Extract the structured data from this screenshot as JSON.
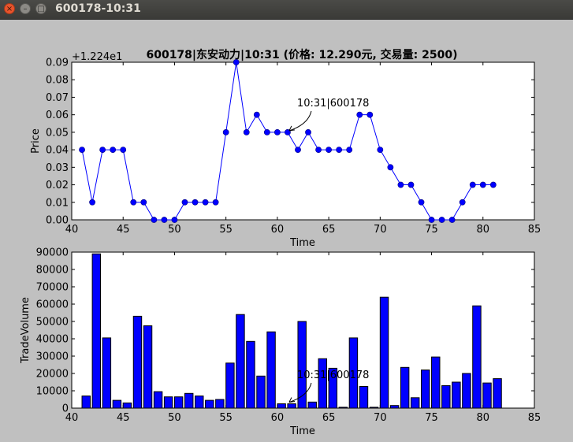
{
  "window": {
    "title": "600178-10:31"
  },
  "chart_data": [
    {
      "type": "line",
      "title": "600178|东安动力|10:31 (价格: 12.290元, 交易量: 2500)",
      "xlabel": "Time",
      "ylabel": "Price",
      "offset_label": "+1.224e1",
      "xlim": [
        40,
        85
      ],
      "ylim": [
        0.0,
        0.09
      ],
      "xticks": [
        "40",
        "45",
        "50",
        "55",
        "60",
        "65",
        "70",
        "75",
        "80",
        "85"
      ],
      "yticks": [
        "0.00",
        "0.01",
        "0.02",
        "0.03",
        "0.04",
        "0.05",
        "0.06",
        "0.07",
        "0.08",
        "0.09"
      ],
      "x": [
        41,
        42,
        43,
        44,
        45,
        46,
        47,
        48,
        49,
        50,
        51,
        52,
        53,
        54,
        55,
        56,
        57,
        58,
        59,
        60,
        61,
        62,
        63,
        64,
        65,
        66,
        67,
        68,
        69,
        70,
        71,
        72,
        73,
        74,
        75,
        76,
        77,
        78,
        79,
        80,
        81
      ],
      "values": [
        0.04,
        0.01,
        0.04,
        0.04,
        0.04,
        0.01,
        0.01,
        0.0,
        0.0,
        0.0,
        0.01,
        0.01,
        0.01,
        0.01,
        0.05,
        0.09,
        0.05,
        0.06,
        0.05,
        0.05,
        0.05,
        0.04,
        0.05,
        0.04,
        0.04,
        0.04,
        0.04,
        0.06,
        0.06,
        0.04,
        0.03,
        0.02,
        0.02,
        0.01,
        0.0,
        0.0,
        0.0,
        0.01,
        0.02,
        0.02,
        0.02
      ],
      "annotation": {
        "text": "10:31|600178",
        "x": 61,
        "y": 0.05
      },
      "color": "#0000ff",
      "grid": false
    },
    {
      "type": "bar",
      "xlabel": "Time",
      "ylabel": "TradeVolume",
      "xlim": [
        40,
        85
      ],
      "ylim": [
        0,
        90000
      ],
      "xticks": [
        "40",
        "45",
        "50",
        "55",
        "60",
        "65",
        "70",
        "75",
        "80",
        "85"
      ],
      "yticks": [
        "0",
        "10000",
        "20000",
        "30000",
        "40000",
        "50000",
        "60000",
        "70000",
        "80000",
        "90000"
      ],
      "x": [
        41,
        42,
        43,
        44,
        45,
        46,
        47,
        48,
        49,
        50,
        51,
        52,
        53,
        54,
        55,
        56,
        57,
        58,
        59,
        60,
        61,
        62,
        63,
        64,
        65,
        66,
        67,
        68,
        69,
        70,
        71,
        72,
        73,
        74,
        75,
        76,
        77,
        78,
        79,
        80,
        81
      ],
      "values": [
        7000,
        89000,
        40500,
        4500,
        3000,
        53000,
        47500,
        9500,
        6500,
        6500,
        8500,
        7000,
        4500,
        5000,
        26000,
        54000,
        38500,
        18500,
        44000,
        2500,
        2500,
        50000,
        3500,
        28500,
        23000,
        500,
        40500,
        12500,
        500,
        64000,
        1500,
        23500,
        6000,
        22000,
        29500,
        13000,
        15000,
        20000,
        59000,
        14500,
        17000
      ],
      "annotation": {
        "text": "10:31|600178",
        "x": 61,
        "y": 2500
      },
      "color": "#0000ff",
      "grid": false
    }
  ]
}
